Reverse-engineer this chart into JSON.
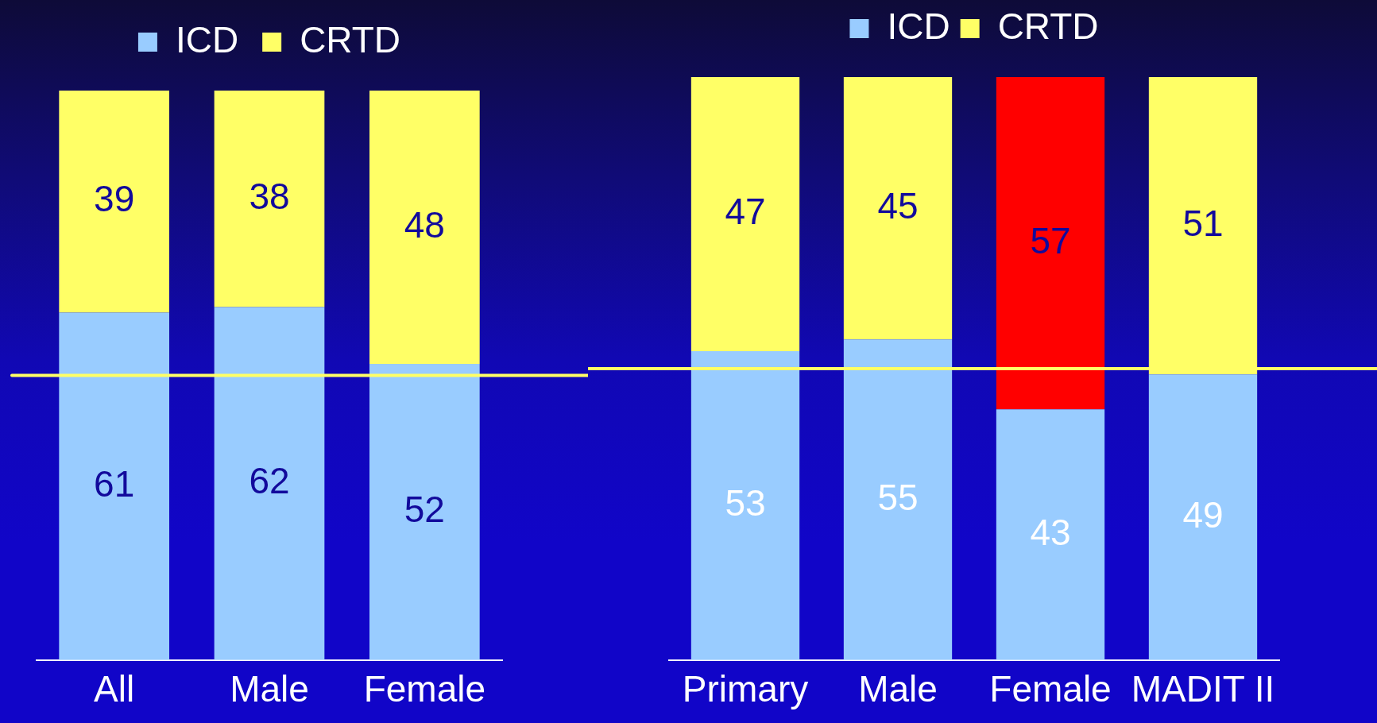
{
  "chart_data": [
    {
      "type": "bar",
      "stacked": true,
      "categories": [
        "All",
        "Male",
        "Female"
      ],
      "series": [
        {
          "name": "ICD",
          "color": "#99ccff",
          "values": [
            61,
            62,
            52
          ]
        },
        {
          "name": "CRTD",
          "color": "#ffff66",
          "values": [
            39,
            38,
            48
          ]
        }
      ],
      "data_labels": true,
      "legend": "top",
      "ref_lines": [
        {
          "axis": "y",
          "value": 50,
          "color": "#ffff66"
        }
      ]
    },
    {
      "type": "bar",
      "stacked": true,
      "categories": [
        "Primary",
        "Male",
        "Female",
        "MADIT II"
      ],
      "series": [
        {
          "name": "ICD",
          "color": "#99ccff",
          "values": [
            53,
            55,
            43,
            49
          ]
        },
        {
          "name": "CRTD",
          "color": "#ffff66",
          "colors": [
            "#ffff66",
            "#ffff66",
            "#ff0000",
            "#ffff66"
          ],
          "values": [
            47,
            45,
            57,
            51
          ]
        }
      ],
      "data_labels": true,
      "legend": "top",
      "ref_lines": [
        {
          "axis": "y",
          "value": 50,
          "color": "#ffff66"
        }
      ]
    }
  ]
}
